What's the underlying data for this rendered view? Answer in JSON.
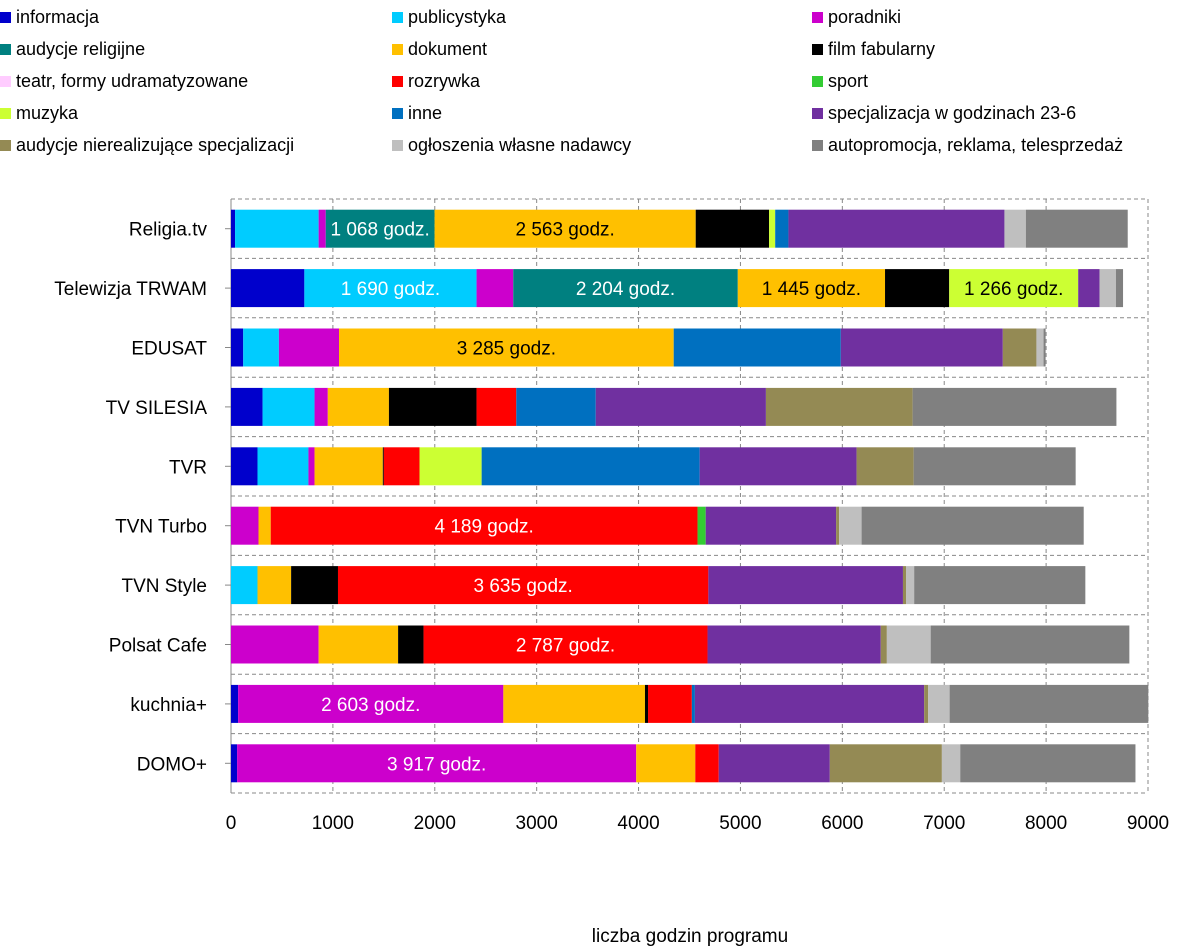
{
  "chart_data": {
    "type": "bar",
    "orientation": "horizontal",
    "stacked": true,
    "xlabel": "liczba godzin programu",
    "xlim": [
      0,
      9000
    ],
    "xticks": [
      0,
      1000,
      2000,
      3000,
      4000,
      5000,
      6000,
      7000,
      8000,
      9000
    ],
    "grid": true,
    "legend_position": "top",
    "categories": [
      "Religia.tv",
      "Telewizja TRWAM",
      "EDUSAT",
      "TV SILESIA",
      "TVR",
      "TVN Turbo",
      "TVN Style",
      "Polsat Cafe",
      "kuchnia+",
      "DOMO+"
    ],
    "series": [
      {
        "name": "informacja",
        "color": "#0000CC",
        "values": [
          40,
          720,
          120,
          310,
          260,
          0,
          0,
          0,
          70,
          60
        ]
      },
      {
        "name": "publicystyka",
        "color": "#00CCFF",
        "values": [
          820,
          1690,
          350,
          510,
          500,
          0,
          260,
          0,
          0,
          0
        ]
      },
      {
        "name": "poradniki",
        "color": "#CC00CC",
        "values": [
          70,
          360,
          590,
          130,
          60,
          270,
          0,
          860,
          2603,
          3917
        ]
      },
      {
        "name": "audycje religijne",
        "color": "#008080",
        "values": [
          1068,
          2204,
          0,
          0,
          0,
          0,
          0,
          0,
          0,
          0
        ]
      },
      {
        "name": "dokument",
        "color": "#FFC000",
        "values": [
          2563,
          1445,
          3285,
          600,
          670,
          120,
          330,
          780,
          1390,
          580
        ]
      },
      {
        "name": "film fabularny",
        "color": "#000000",
        "values": [
          720,
          630,
          0,
          860,
          10,
          0,
          460,
          250,
          30,
          0
        ]
      },
      {
        "name": "teatr, formy udramatyzowane",
        "color": "#FFCCFF",
        "values": [
          0,
          0,
          0,
          0,
          0,
          0,
          0,
          0,
          0,
          0
        ]
      },
      {
        "name": "rozrywka",
        "color": "#FF0000",
        "values": [
          0,
          0,
          0,
          390,
          350,
          4189,
          3635,
          2787,
          430,
          230
        ]
      },
      {
        "name": "sport",
        "color": "#33CC33",
        "values": [
          0,
          0,
          0,
          0,
          0,
          80,
          0,
          0,
          0,
          0
        ]
      },
      {
        "name": "muzyka",
        "color": "#CCFF33",
        "values": [
          60,
          1266,
          0,
          0,
          610,
          0,
          0,
          0,
          0,
          0
        ]
      },
      {
        "name": "inne",
        "color": "#0070C0",
        "values": [
          130,
          0,
          1640,
          780,
          2140,
          0,
          0,
          0,
          30,
          0
        ]
      },
      {
        "name": "specjalizacja w godzinach 23-6",
        "color": "#7030A0",
        "values": [
          2120,
          210,
          1590,
          1670,
          1540,
          1280,
          1910,
          1700,
          2250,
          1090
        ]
      },
      {
        "name": "audycje nierealizujące specjalizacji",
        "color": "#948A54",
        "values": [
          0,
          0,
          330,
          1440,
          560,
          30,
          30,
          60,
          40,
          1100
        ]
      },
      {
        "name": "ogłoszenia własne nadawcy",
        "color": "#BFBFBF",
        "values": [
          210,
          160,
          70,
          0,
          0,
          220,
          80,
          430,
          210,
          180
        ]
      },
      {
        "name": "autopromocja, reklama, telesprzedaż",
        "color": "#808080",
        "values": [
          1000,
          70,
          20,
          2000,
          1590,
          2180,
          1680,
          1950,
          1950,
          1720
        ]
      }
    ],
    "labels": [
      {
        "category": 0,
        "series": 3,
        "text": "1 068  godz."
      },
      {
        "category": 0,
        "series": 4,
        "text": "2 563  godz."
      },
      {
        "category": 1,
        "series": 1,
        "text": "1 690  godz."
      },
      {
        "category": 1,
        "series": 3,
        "text": "2 204  godz."
      },
      {
        "category": 1,
        "series": 4,
        "text": "1 445  godz."
      },
      {
        "category": 1,
        "series": 9,
        "text": "1 266  godz."
      },
      {
        "category": 2,
        "series": 4,
        "text": "3 285  godz."
      },
      {
        "category": 5,
        "series": 7,
        "text": "4 189  godz."
      },
      {
        "category": 6,
        "series": 7,
        "text": "3 635  godz."
      },
      {
        "category": 7,
        "series": 7,
        "text": "2 787  godz."
      },
      {
        "category": 8,
        "series": 2,
        "text": "2 603  godz."
      },
      {
        "category": 9,
        "series": 2,
        "text": "3 917  godz."
      }
    ]
  }
}
